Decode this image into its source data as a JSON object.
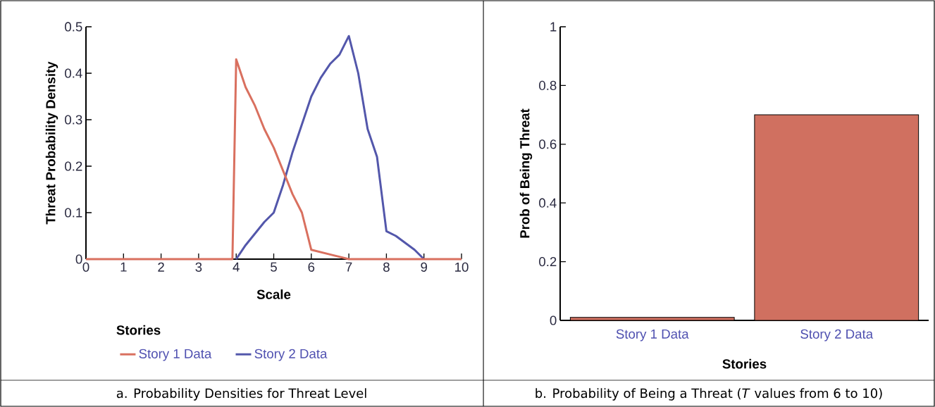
{
  "chart_data": [
    {
      "type": "line",
      "xlabel": "Scale",
      "ylabel": "Threat Probability Density",
      "legend_title": "Stories",
      "legend": "bottom",
      "xlim": [
        0,
        10
      ],
      "ylim": [
        0,
        0.5
      ],
      "xticks": [
        0,
        1,
        2,
        3,
        4,
        5,
        6,
        7,
        8,
        9,
        10
      ],
      "yticks": [
        0,
        0.1,
        0.2,
        0.3,
        0.4,
        0.5
      ],
      "series": [
        {
          "name": "Story 1 Data",
          "color": "#d9705f",
          "x": [
            0,
            3.9,
            4,
            4.25,
            4.5,
            4.75,
            5,
            5.5,
            5.75,
            6,
            6.5,
            7,
            10
          ],
          "values": [
            0,
            0,
            0.43,
            0.37,
            0.33,
            0.28,
            0.24,
            0.14,
            0.1,
            0.02,
            0.01,
            0,
            0
          ]
        },
        {
          "name": "Story 2 Data",
          "color": "#5357ab",
          "x": [
            4,
            4.25,
            4.75,
            5,
            5.25,
            5.5,
            6,
            6.25,
            6.5,
            6.75,
            7,
            7.25,
            7.5,
            7.75,
            8,
            8.25,
            8.75,
            9
          ],
          "values": [
            0,
            0.03,
            0.08,
            0.1,
            0.16,
            0.23,
            0.35,
            0.39,
            0.42,
            0.44,
            0.48,
            0.4,
            0.28,
            0.22,
            0.06,
            0.05,
            0.02,
            0
          ]
        }
      ],
      "annotations": [
        "a. Probability Densities for Threat Level"
      ]
    },
    {
      "type": "bar",
      "xlabel": "Stories",
      "ylabel": "Prob of Being Threat",
      "categories": [
        "Story 1 Data",
        "Story 2 Data"
      ],
      "values": [
        0.01,
        0.7
      ],
      "color": "#d07060",
      "ylim": [
        0,
        1
      ],
      "yticks": [
        0,
        0.2,
        0.4,
        0.6,
        0.8,
        1
      ],
      "annotations": [
        "b. Probability of Being a Threat (*T* values from 6 to 10)"
      ]
    }
  ]
}
